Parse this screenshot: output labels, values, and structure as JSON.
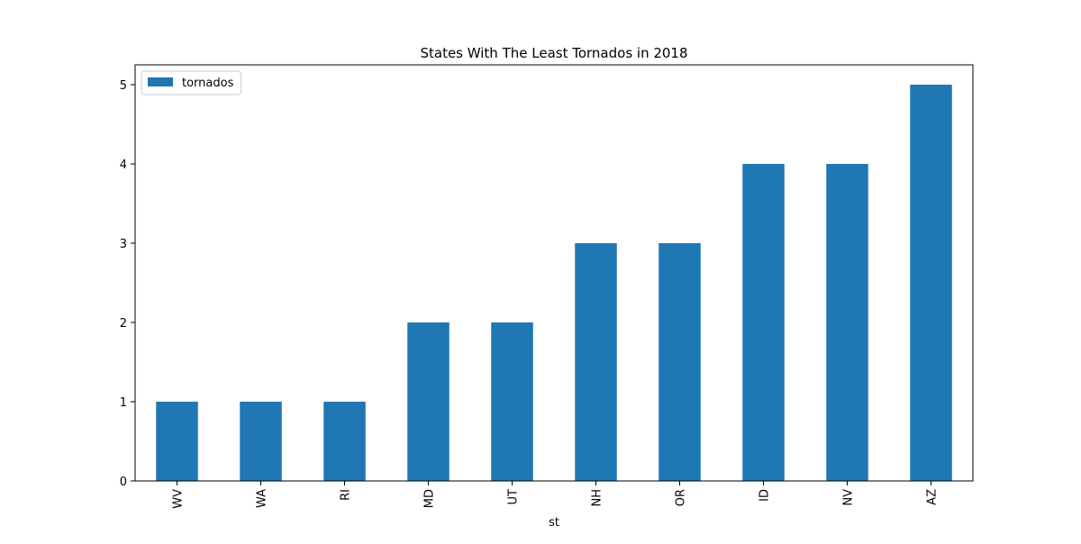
{
  "chart_data": {
    "type": "bar",
    "title": "States With The Least Tornados in 2018",
    "xlabel": "st",
    "ylabel": "",
    "categories": [
      "WV",
      "WA",
      "RI",
      "MD",
      "UT",
      "NH",
      "OR",
      "ID",
      "NV",
      "AZ"
    ],
    "series": [
      {
        "name": "tornados",
        "values": [
          1,
          1,
          1,
          2,
          2,
          3,
          3,
          4,
          4,
          5
        ],
        "color": "#1f77b4"
      }
    ],
    "ylim": [
      0,
      5.25
    ],
    "yticks": [
      0,
      1,
      2,
      3,
      4,
      5
    ],
    "grid": false,
    "legend_position": "upper-left"
  }
}
